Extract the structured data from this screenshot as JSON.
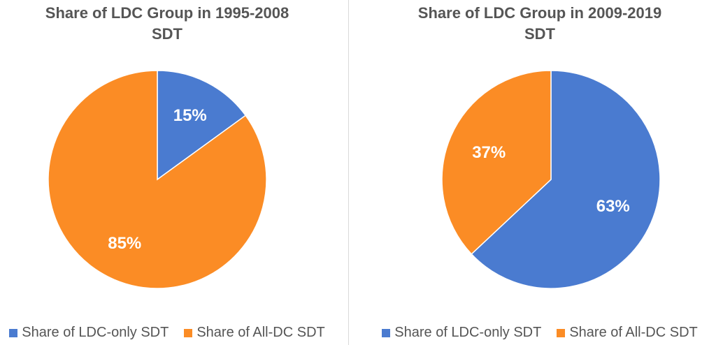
{
  "colors": {
    "ldc_only": "#4a7bd0",
    "all_dc": "#fb8c25",
    "label": "#ffffff"
  },
  "chart_data": [
    {
      "type": "pie",
      "title": [
        "Share of LDC Group in 1995-2008",
        "SDT"
      ],
      "categories": [
        "Share of LDC-only SDT",
        "Share of All-DC SDT"
      ],
      "values": [
        15,
        85
      ],
      "labels": [
        "15%",
        "85%"
      ],
      "legend": "bottom"
    },
    {
      "type": "pie",
      "title": [
        "Share of LDC Group in 2009-2019",
        "SDT"
      ],
      "categories": [
        "Share of LDC-only SDT",
        "Share of All-DC SDT"
      ],
      "values": [
        63,
        37
      ],
      "labels": [
        "63%",
        "37%"
      ],
      "legend": "bottom"
    }
  ]
}
